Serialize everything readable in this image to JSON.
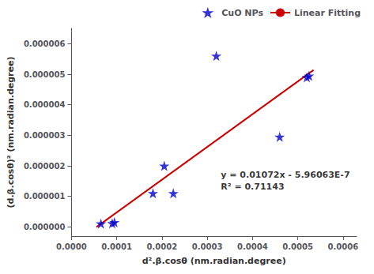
{
  "chart_data": {
    "type": "scatter",
    "xlabel": "d².β.cosθ (nm.radian.degree)",
    "ylabel": "(d.β.cosθ)² (nm.radian.degree)",
    "series": [
      {
        "name": "CuO NPs",
        "type": "scatter",
        "color": "#0000cc",
        "marker": "star",
        "x": [
          6.5e-05,
          9e-05,
          9.5e-05,
          0.00018,
          0.000205,
          0.000225,
          0.00032,
          0.00046,
          0.00052,
          0.000525
        ],
        "values": [
          1.1e-07,
          1.2e-07,
          1.5e-07,
          1.1e-06,
          2e-06,
          1.1e-06,
          5.6e-06,
          2.95e-06,
          4.9e-06,
          4.95e-06
        ]
      },
      {
        "name": "Linear Fitting",
        "type": "line",
        "color": "#cc0000",
        "x": [
          5.5e-05,
          0.000535
        ],
        "values": [
          -6.463e-09,
          5.139137e-06
        ]
      }
    ],
    "annotations": [
      {
        "text": "y = 0.01072x - 5.96063E-7\nR² = 0.71143",
        "x": 0.00033,
        "y": 1.5e-06
      }
    ],
    "xlim": [
      0.0,
      0.00063
    ],
    "ylim": [
      -3e-07,
      6.5e-06
    ],
    "xticks": [
      {
        "value": 0.0,
        "label": "0.0000"
      },
      {
        "value": 0.0001,
        "label": "0.0001"
      },
      {
        "value": 0.0002,
        "label": "0.0002"
      },
      {
        "value": 0.0003,
        "label": "0.0003"
      },
      {
        "value": 0.0004,
        "label": "0.0004"
      },
      {
        "value": 0.0005,
        "label": "0.0005"
      },
      {
        "value": 0.0006,
        "label": "0.0006"
      }
    ],
    "yticks": [
      {
        "value": 0.0,
        "label": "0.000000"
      },
      {
        "value": 1e-06,
        "label": "0.000001"
      },
      {
        "value": 2e-06,
        "label": "0.000002"
      },
      {
        "value": 3e-06,
        "label": "0.000003"
      },
      {
        "value": 4e-06,
        "label": "0.000004"
      },
      {
        "value": 5e-06,
        "label": "0.000005"
      },
      {
        "value": 6e-06,
        "label": "0.000006"
      }
    ],
    "grid": false,
    "legend": "upper right"
  }
}
